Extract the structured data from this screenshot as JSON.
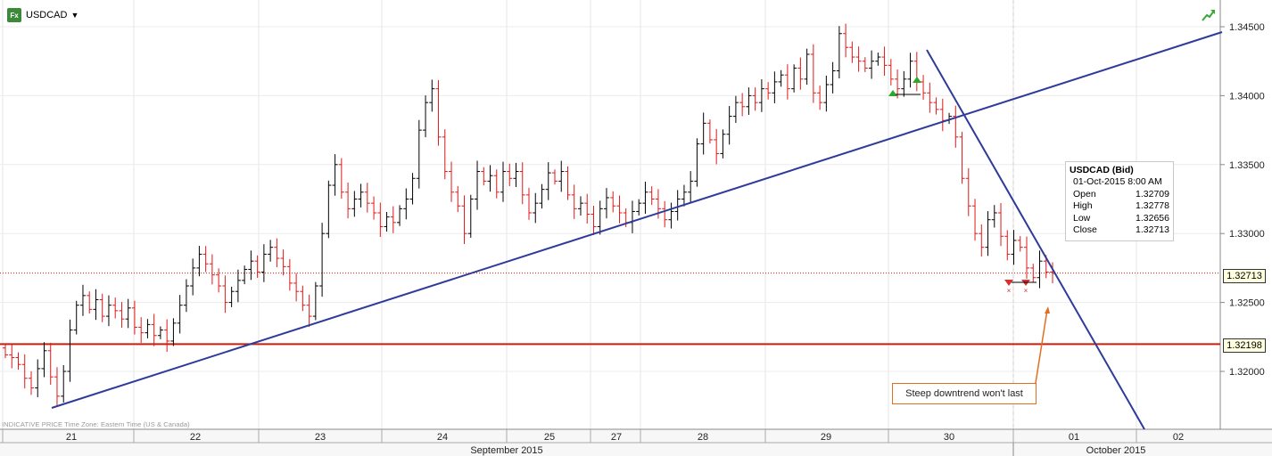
{
  "header": {
    "symbol": "USDCAD",
    "fx_badge": "Fx"
  },
  "footer_note": "INDICATIVE PRICE   Time Zone: Eastern Time (US & Canada)",
  "tooltip": {
    "title": "USDCAD (Bid)",
    "datetime": "01-Oct-2015 8:00 AM",
    "rows": [
      {
        "label": "Open",
        "value": "1.32709"
      },
      {
        "label": "High",
        "value": "1.32778"
      },
      {
        "label": "Low",
        "value": "1.32656"
      },
      {
        "label": "Close",
        "value": "1.32713"
      }
    ]
  },
  "annotation": "Steep downtrend won't last",
  "price_tags": {
    "last": "1.32713",
    "support": "1.32198"
  },
  "colors": {
    "up": "#000000",
    "down": "#e01818",
    "trendline": "#2e3b9a",
    "support": "#c81e0a",
    "annotation": "#e07020",
    "buy_marker": "#2aa82a",
    "sell_marker": "#d83030"
  },
  "chart_data": {
    "type": "ohlc",
    "yaxis": {
      "min": 1.3155,
      "max": 1.3465,
      "ticks": [
        "1.34500",
        "1.34000",
        "1.33500",
        "1.33000",
        "1.32500",
        "1.32000"
      ]
    },
    "xaxis": {
      "days": [
        "21",
        "22",
        "23",
        "24",
        "25",
        "27",
        "28",
        "29",
        "30",
        "01",
        "02"
      ],
      "months": [
        "September 2015",
        "October 2015"
      ]
    },
    "series_close": [
      1.3212,
      1.321,
      1.3205,
      1.3195,
      1.3188,
      1.3202,
      1.3215,
      1.3196,
      1.3182,
      1.32,
      1.323,
      1.3248,
      1.3255,
      1.3245,
      1.3252,
      1.324,
      1.3248,
      1.3244,
      1.3238,
      1.3246,
      1.3232,
      1.3228,
      1.3234,
      1.3226,
      1.323,
      1.3222,
      1.3235,
      1.3248,
      1.3262,
      1.3275,
      1.3285,
      1.3278,
      1.327,
      1.3262,
      1.325,
      1.3258,
      1.3266,
      1.3274,
      1.328,
      1.3272,
      1.3285,
      1.329,
      1.3282,
      1.3276,
      1.3264,
      1.3258,
      1.3248,
      1.324,
      1.3262,
      1.33,
      1.3335,
      1.335,
      1.333,
      1.3318,
      1.3325,
      1.333,
      1.3322,
      1.3315,
      1.3305,
      1.3312,
      1.3308,
      1.3318,
      1.3325,
      1.334,
      1.3375,
      1.3395,
      1.3405,
      1.337,
      1.3345,
      1.333,
      1.332,
      1.33,
      1.3325,
      1.3345,
      1.3338,
      1.3342,
      1.333,
      1.3345,
      1.334,
      1.3345,
      1.3328,
      1.3315,
      1.3322,
      1.3332,
      1.3344,
      1.3338,
      1.3345,
      1.3328,
      1.3318,
      1.3322,
      1.3314,
      1.3305,
      1.3318,
      1.3326,
      1.332,
      1.3315,
      1.3308,
      1.3316,
      1.3322,
      1.333,
      1.3325,
      1.3318,
      1.331,
      1.3316,
      1.3325,
      1.333,
      1.3338,
      1.3365,
      1.338,
      1.3368,
      1.3358,
      1.3372,
      1.3385,
      1.3395,
      1.3392,
      1.34,
      1.3395,
      1.3405,
      1.3402,
      1.341,
      1.3415,
      1.3405,
      1.342,
      1.3412,
      1.343,
      1.3402,
      1.3395,
      1.3408,
      1.3418,
      1.3445,
      1.3435,
      1.3428,
      1.3425,
      1.342,
      1.3425,
      1.3428,
      1.3422,
      1.3412,
      1.3405,
      1.3412,
      1.3425,
      1.341,
      1.3402,
      1.3395,
      1.339,
      1.3382,
      1.3385,
      1.337,
      1.334,
      1.332,
      1.33,
      1.329,
      1.331,
      1.3315,
      1.3298,
      1.3285,
      1.3295,
      1.329,
      1.3275,
      1.3268,
      1.328,
      1.3272,
      1.3271
    ],
    "trendlines": [
      {
        "name": "rising",
        "from": [
          "21",
          1.317
        ],
        "to": [
          "02+",
          1.3448
        ]
      },
      {
        "name": "falling",
        "from": [
          "30",
          1.3432
        ],
        "to": [
          "02",
          1.316
        ]
      }
    ],
    "horizontal_lines": [
      {
        "value": 1.32198,
        "style": "solid"
      },
      {
        "value": 1.32713,
        "style": "dotted"
      }
    ]
  }
}
